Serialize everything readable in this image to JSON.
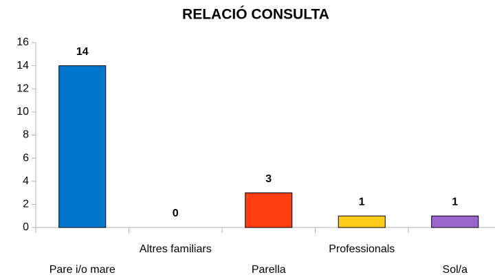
{
  "chart_data": {
    "type": "bar",
    "title": "RELACIÓ CONSULTA",
    "categories": [
      "Pare i/o mare",
      "Altres familiars",
      "Parella",
      "Professionals",
      "Sol/a"
    ],
    "values": [
      14,
      0,
      3,
      1,
      1
    ],
    "colors": [
      "#0077cc",
      "#004586",
      "#ff3d10",
      "#ffcc1a",
      "#9966cc"
    ],
    "ylim": [
      0,
      16
    ],
    "yticks": [
      0,
      2,
      4,
      6,
      8,
      10,
      12,
      14,
      16
    ],
    "grid": false
  }
}
